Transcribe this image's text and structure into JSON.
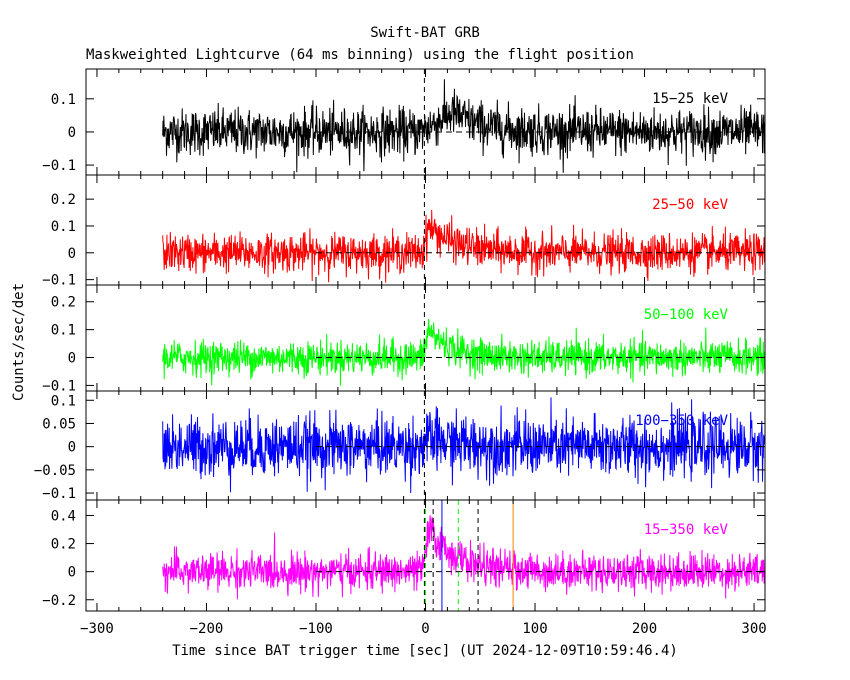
{
  "title": "Swift-BAT GRB",
  "subtitle": "Maskweighted Lightcurve (64 ms binning) using the flight position",
  "chart_data": {
    "type": "line",
    "title": "Swift-BAT GRB",
    "subtitle": "Maskweighted Lightcurve (64 ms binning) using the flight position",
    "xlabel": "Time since BAT trigger time [sec] (UT 2024-12-09T10:59:46.4)",
    "ylabel": "Counts/sec/det",
    "xlim": [
      -310,
      310
    ],
    "x_ticks": [
      -300,
      -200,
      -100,
      0,
      100,
      200,
      300
    ],
    "data_x_range": [
      -240,
      310
    ],
    "zero_dashed_line_from": -100,
    "panels": [
      {
        "name": "15-25 keV",
        "label": "15−25 keV",
        "color": "#000000",
        "ylim": [
          -0.13,
          0.19
        ],
        "y_ticks": [
          -0.1,
          0,
          0.1
        ],
        "y_tick_labels": [
          "−0.1",
          "0",
          "0.1"
        ],
        "noise_sigma": 0.035,
        "peak": {
          "start": -5,
          "rise_to": 25,
          "amplitude": 0.06,
          "decay": 25
        }
      },
      {
        "name": "25-50 keV",
        "label": "25−50 keV",
        "color": "#ff0000",
        "ylim": [
          -0.12,
          0.29
        ],
        "y_ticks": [
          -0.1,
          0,
          0.1,
          0.2
        ],
        "y_tick_labels": [
          "−0.1",
          "0",
          "0.1",
          "0.2"
        ],
        "noise_sigma": 0.035,
        "peak": {
          "start": -3,
          "rise_to": 3,
          "amplitude": 0.1,
          "decay": 25
        }
      },
      {
        "name": "50-100 keV",
        "label": "50−100 keV",
        "color": "#00ff00",
        "ylim": [
          -0.12,
          0.26
        ],
        "y_ticks": [
          -0.1,
          0,
          0.1,
          0.2
        ],
        "y_tick_labels": [
          "−0.1",
          "0",
          "0.1",
          "0.2"
        ],
        "noise_sigma": 0.03,
        "peak": {
          "start": -3,
          "rise_to": 3,
          "amplitude": 0.1,
          "decay": 20
        }
      },
      {
        "name": "100-350 keV",
        "label": "100−350 keV",
        "color": "#0000ff",
        "ylim": [
          -0.115,
          0.12
        ],
        "y_ticks": [
          -0.1,
          -0.05,
          0,
          0.05,
          0.1
        ],
        "y_tick_labels": [
          "−0.1",
          "−0.05",
          "0",
          "0.05",
          "0.1"
        ],
        "noise_sigma": 0.032,
        "peak": {
          "start": -5,
          "rise_to": 5,
          "amplitude": 0.015,
          "decay": 30
        }
      },
      {
        "name": "15-350 keV",
        "label": "15−350 keV",
        "color": "#ff00ff",
        "ylim": [
          -0.28,
          0.51
        ],
        "y_ticks": [
          -0.2,
          0,
          0.2,
          0.4
        ],
        "y_tick_labels": [
          "−0.2",
          "0",
          "0.2",
          "0.4"
        ],
        "noise_sigma": 0.065,
        "peak": {
          "start": -3,
          "rise_to": 3,
          "amplitude": 0.3,
          "decay": 25
        }
      }
    ],
    "vertical_markers": [
      {
        "x": -1,
        "color": "#000000",
        "style": "dashed",
        "panels": "all"
      },
      {
        "x": 0,
        "color": "#00ff00",
        "style": "dashed",
        "panels": "last"
      },
      {
        "x": 7,
        "color": "#000000",
        "style": "dashed",
        "panels": "last"
      },
      {
        "x": 15,
        "color": "#0000ff",
        "style": "solid",
        "panels": "last"
      },
      {
        "x": 30,
        "color": "#00ff00",
        "style": "dashed",
        "panels": "last"
      },
      {
        "x": 48,
        "color": "#000000",
        "style": "dashed",
        "panels": "last"
      },
      {
        "x": 80,
        "color": "#ff8000",
        "style": "solid",
        "panels": "last"
      }
    ]
  }
}
